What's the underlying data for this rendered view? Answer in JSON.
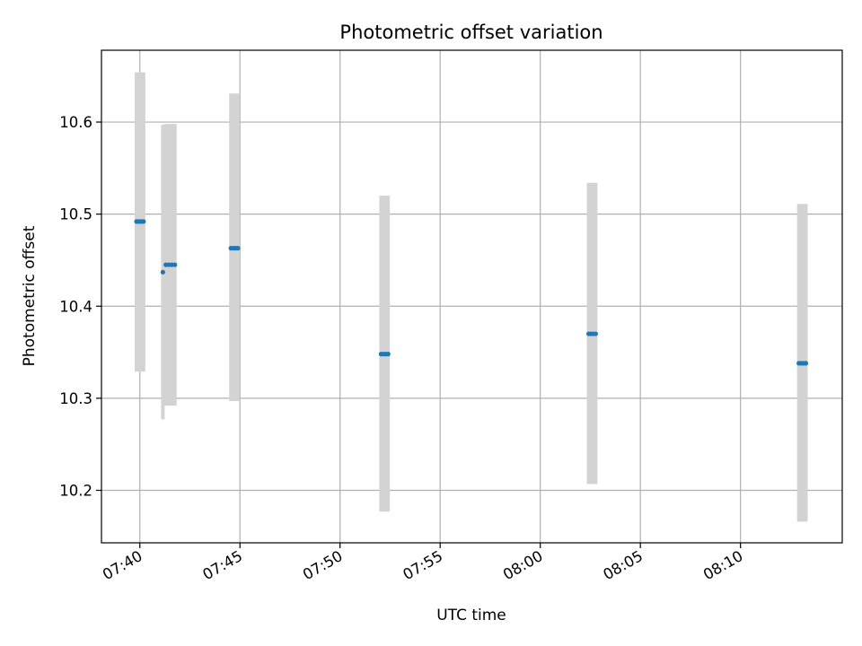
{
  "chart_data": {
    "type": "scatter",
    "title": "Photometric offset variation",
    "xlabel": "UTC time",
    "ylabel": "Photometric offset",
    "xlim": [
      "07:38:05",
      "08:15:05"
    ],
    "ylim": [
      10.143,
      10.678
    ],
    "grid": true,
    "x_ticks": [
      "07:40",
      "07:45",
      "07:50",
      "07:55",
      "08:00",
      "08:05",
      "08:10"
    ],
    "y_ticks": [
      10.2,
      10.3,
      10.4,
      10.5,
      10.6
    ],
    "y_tick_labels": [
      "10.2",
      "10.3",
      "10.4",
      "10.5",
      "10.6"
    ],
    "error_color": "#d3d3d3",
    "point_color": "#1f77b4",
    "points": [
      {
        "time": "07:39:50",
        "y": 10.492,
        "ylow": 10.329,
        "yhigh": 10.654
      },
      {
        "time": "07:39:57",
        "y": 10.492,
        "ylow": 10.329,
        "yhigh": 10.654
      },
      {
        "time": "07:40:04",
        "y": 10.492,
        "ylow": 10.329,
        "yhigh": 10.654
      },
      {
        "time": "07:40:11",
        "y": 10.492,
        "ylow": 10.329,
        "yhigh": 10.654
      },
      {
        "time": "07:41:09",
        "y": 10.437,
        "ylow": 10.277,
        "yhigh": 10.597
      },
      {
        "time": "07:41:18",
        "y": 10.445,
        "ylow": 10.292,
        "yhigh": 10.598
      },
      {
        "time": "07:41:27",
        "y": 10.445,
        "ylow": 10.292,
        "yhigh": 10.598
      },
      {
        "time": "07:41:36",
        "y": 10.445,
        "ylow": 10.292,
        "yhigh": 10.598
      },
      {
        "time": "07:41:45",
        "y": 10.445,
        "ylow": 10.292,
        "yhigh": 10.598
      },
      {
        "time": "07:44:33",
        "y": 10.463,
        "ylow": 10.297,
        "yhigh": 10.631
      },
      {
        "time": "07:44:40",
        "y": 10.463,
        "ylow": 10.297,
        "yhigh": 10.631
      },
      {
        "time": "07:44:47",
        "y": 10.463,
        "ylow": 10.297,
        "yhigh": 10.631
      },
      {
        "time": "07:44:54",
        "y": 10.463,
        "ylow": 10.297,
        "yhigh": 10.631
      },
      {
        "time": "07:52:03",
        "y": 10.348,
        "ylow": 10.177,
        "yhigh": 10.52
      },
      {
        "time": "07:52:10",
        "y": 10.348,
        "ylow": 10.177,
        "yhigh": 10.52
      },
      {
        "time": "07:52:17",
        "y": 10.348,
        "ylow": 10.177,
        "yhigh": 10.52
      },
      {
        "time": "07:52:24",
        "y": 10.348,
        "ylow": 10.177,
        "yhigh": 10.52
      },
      {
        "time": "08:02:25",
        "y": 10.37,
        "ylow": 10.207,
        "yhigh": 10.534
      },
      {
        "time": "08:02:32",
        "y": 10.37,
        "ylow": 10.207,
        "yhigh": 10.534
      },
      {
        "time": "08:02:39",
        "y": 10.37,
        "ylow": 10.207,
        "yhigh": 10.534
      },
      {
        "time": "08:02:46",
        "y": 10.37,
        "ylow": 10.207,
        "yhigh": 10.534
      },
      {
        "time": "08:12:55",
        "y": 10.338,
        "ylow": 10.166,
        "yhigh": 10.511
      },
      {
        "time": "08:13:02",
        "y": 10.338,
        "ylow": 10.166,
        "yhigh": 10.511
      },
      {
        "time": "08:13:09",
        "y": 10.338,
        "ylow": 10.166,
        "yhigh": 10.511
      },
      {
        "time": "08:13:16",
        "y": 10.338,
        "ylow": 10.166,
        "yhigh": 10.511
      }
    ]
  }
}
